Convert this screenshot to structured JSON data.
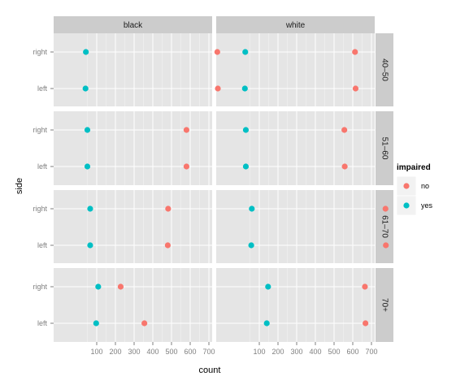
{
  "chart_data": {
    "type": "scatter",
    "title": "",
    "xlabel": "count",
    "ylabel": "side",
    "xlim": [
      0,
      800
    ],
    "x_ticks": [
      100,
      200,
      300,
      400,
      500,
      600,
      700
    ],
    "y_categories": [
      "left",
      "right"
    ],
    "facet_columns": [
      "black",
      "white"
    ],
    "facet_rows": [
      "40–50",
      "51–60",
      "61–70",
      "70+"
    ],
    "grid": true,
    "legend": {
      "title": "impaired",
      "position": "right",
      "entries": [
        "no",
        "yes"
      ]
    },
    "colors": {
      "no": "#F8766D",
      "yes": "#00BFC4"
    },
    "series": [
      {
        "name": "no",
        "points": [
          {
            "col": "black",
            "row": "40–50",
            "side": "right",
            "count": 745
          },
          {
            "col": "black",
            "row": "40–50",
            "side": "left",
            "count": 748
          },
          {
            "col": "white",
            "row": "40–50",
            "side": "right",
            "count": 612
          },
          {
            "col": "white",
            "row": "40–50",
            "side": "left",
            "count": 615
          },
          {
            "col": "black",
            "row": "51–60",
            "side": "right",
            "count": 580
          },
          {
            "col": "black",
            "row": "51–60",
            "side": "left",
            "count": 580
          },
          {
            "col": "white",
            "row": "51–60",
            "side": "right",
            "count": 555
          },
          {
            "col": "white",
            "row": "51–60",
            "side": "left",
            "count": 557
          },
          {
            "col": "black",
            "row": "61–70",
            "side": "right",
            "count": 482
          },
          {
            "col": "black",
            "row": "61–70",
            "side": "left",
            "count": 480
          },
          {
            "col": "white",
            "row": "61–70",
            "side": "right",
            "count": 775
          },
          {
            "col": "white",
            "row": "61–70",
            "side": "left",
            "count": 777
          },
          {
            "col": "black",
            "row": "70+",
            "side": "right",
            "count": 228
          },
          {
            "col": "black",
            "row": "70+",
            "side": "left",
            "count": 355
          },
          {
            "col": "white",
            "row": "70+",
            "side": "right",
            "count": 665
          },
          {
            "col": "white",
            "row": "70+",
            "side": "left",
            "count": 668
          }
        ]
      },
      {
        "name": "yes",
        "points": [
          {
            "col": "black",
            "row": "40–50",
            "side": "right",
            "count": 42
          },
          {
            "col": "black",
            "row": "40–50",
            "side": "left",
            "count": 40
          },
          {
            "col": "white",
            "row": "40–50",
            "side": "right",
            "count": 25
          },
          {
            "col": "white",
            "row": "40–50",
            "side": "left",
            "count": 23
          },
          {
            "col": "black",
            "row": "51–60",
            "side": "right",
            "count": 50
          },
          {
            "col": "black",
            "row": "51–60",
            "side": "left",
            "count": 50
          },
          {
            "col": "white",
            "row": "51–60",
            "side": "right",
            "count": 28
          },
          {
            "col": "white",
            "row": "51–60",
            "side": "left",
            "count": 28
          },
          {
            "col": "black",
            "row": "61–70",
            "side": "right",
            "count": 65
          },
          {
            "col": "black",
            "row": "61–70",
            "side": "left",
            "count": 65
          },
          {
            "col": "white",
            "row": "61–70",
            "side": "right",
            "count": 60
          },
          {
            "col": "white",
            "row": "61–70",
            "side": "left",
            "count": 57
          },
          {
            "col": "black",
            "row": "70+",
            "side": "right",
            "count": 108
          },
          {
            "col": "black",
            "row": "70+",
            "side": "left",
            "count": 97
          },
          {
            "col": "white",
            "row": "70+",
            "side": "right",
            "count": 147
          },
          {
            "col": "white",
            "row": "70+",
            "side": "left",
            "count": 140
          }
        ]
      }
    ]
  }
}
